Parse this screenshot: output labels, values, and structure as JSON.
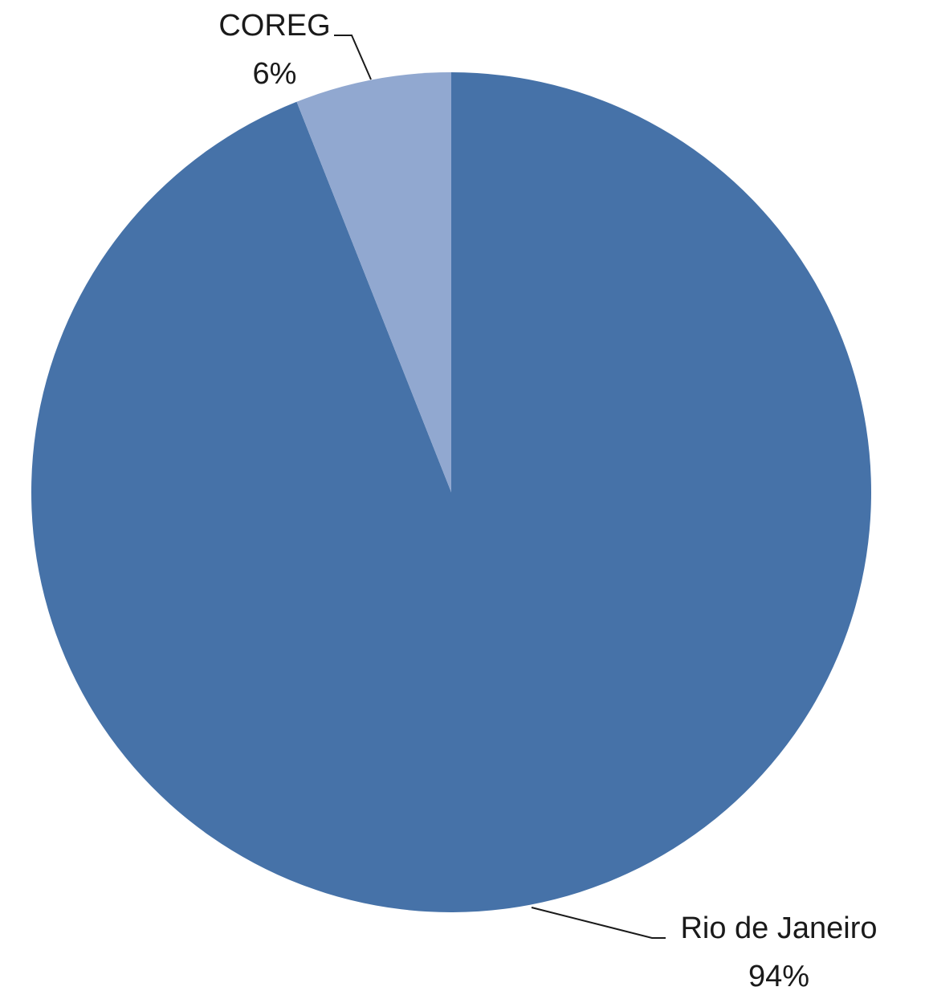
{
  "chart_data": {
    "type": "pie",
    "slices": [
      {
        "label": "Rio de Janeiro",
        "value": 94,
        "value_label": "94%",
        "color": "#4672a8"
      },
      {
        "label": "COREG",
        "value": 6,
        "value_label": "6%",
        "color": "#91a8d0"
      }
    ],
    "start": "12 o'clock",
    "direction": "clockwise",
    "data_labels": "outside with leader lines",
    "legend": "none",
    "title": ""
  }
}
